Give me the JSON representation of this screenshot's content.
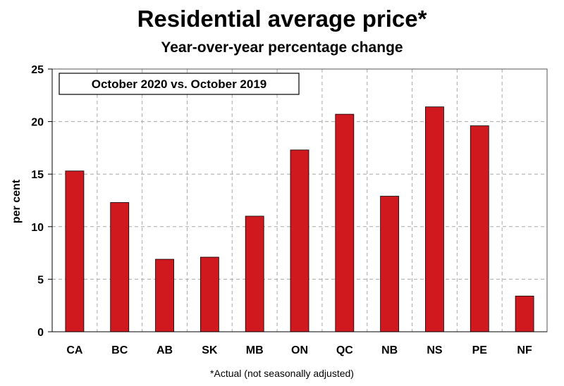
{
  "chart_data": {
    "type": "bar",
    "title": "Residential average price*",
    "subtitle": "Year-over-year percentage change",
    "annotation": "October 2020 vs. October 2019",
    "footnote": "*Actual (not seasonally adjusted)",
    "xlabel": "",
    "ylabel": "per cent",
    "ylim": [
      0,
      25
    ],
    "yticks": [
      0,
      5,
      10,
      15,
      20,
      25
    ],
    "grid": true,
    "categories": [
      "CA",
      "BC",
      "AB",
      "SK",
      "MB",
      "ON",
      "QC",
      "NB",
      "NS",
      "PE",
      "NF"
    ],
    "values": [
      15.3,
      12.3,
      6.9,
      7.1,
      11.0,
      17.3,
      20.7,
      12.9,
      21.4,
      19.6,
      3.4
    ],
    "bar_color": "#d0191f"
  }
}
